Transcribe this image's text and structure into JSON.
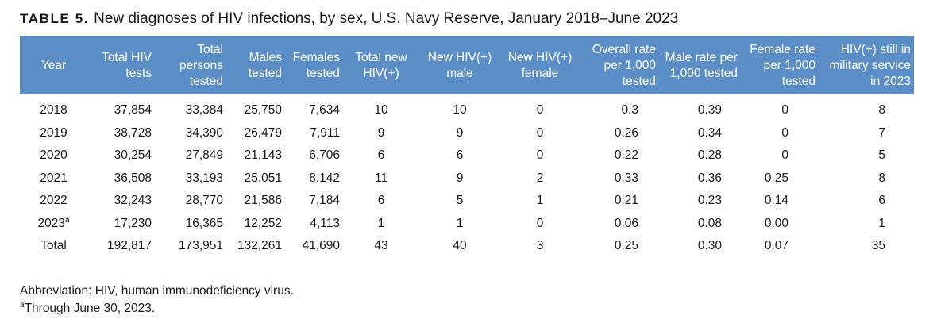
{
  "title": {
    "label": "TABLE 5.",
    "text": "New diagnoses of HIV infections, by sex, U.S. Navy Reserve, January 2018–June 2023"
  },
  "columns": [
    "Year",
    "Total HIV tests",
    "Total persons tested",
    "Males tested",
    "Females tested",
    "Total new HIV(+)",
    "New HIV(+) male",
    "New HIV(+) female",
    "Overall rate per 1,000 tested",
    "Male rate per 1,000 tested",
    "Female rate per 1,000 tested",
    "HIV(+) still in military service in 2023"
  ],
  "rows": [
    {
      "year": "2018",
      "sup": "",
      "cells": [
        "37,854",
        "33,384",
        "25,750",
        "7,634",
        "10",
        "10",
        "0",
        "0.3",
        "0.39",
        "0",
        "8"
      ]
    },
    {
      "year": "2019",
      "sup": "",
      "cells": [
        "38,728",
        "34,390",
        "26,479",
        "7,911",
        "9",
        "9",
        "0",
        "0.26",
        "0.34",
        "0",
        "7"
      ]
    },
    {
      "year": "2020",
      "sup": "",
      "cells": [
        "30,254",
        "27,849",
        "21,143",
        "6,706",
        "6",
        "6",
        "0",
        "0.22",
        "0.28",
        "0",
        "5"
      ]
    },
    {
      "year": "2021",
      "sup": "",
      "cells": [
        "36,508",
        "33,193",
        "25,051",
        "8,142",
        "11",
        "9",
        "2",
        "0.33",
        "0.36",
        "0.25",
        "8"
      ]
    },
    {
      "year": "2022",
      "sup": "",
      "cells": [
        "32,243",
        "28,770",
        "21,586",
        "7,184",
        "6",
        "5",
        "1",
        "0.21",
        "0.23",
        "0.14",
        "6"
      ]
    },
    {
      "year": "2023",
      "sup": "a",
      "cells": [
        "17,230",
        "16,365",
        "12,252",
        "4,113",
        "1",
        "1",
        "0",
        "0.06",
        "0.08",
        "0.00",
        "1"
      ]
    },
    {
      "year": "Total",
      "sup": "",
      "cells": [
        "192,817",
        "173,951",
        "132,261",
        "41,690",
        "43",
        "40",
        "3",
        "0.25",
        "0.30",
        "0.07",
        "35"
      ]
    }
  ],
  "footnotes": {
    "abbreviation": "Abbreviation: HIV, human immunodeficiency virus.",
    "a_marker": "a",
    "a_text": "Through June 30, 2023."
  }
}
